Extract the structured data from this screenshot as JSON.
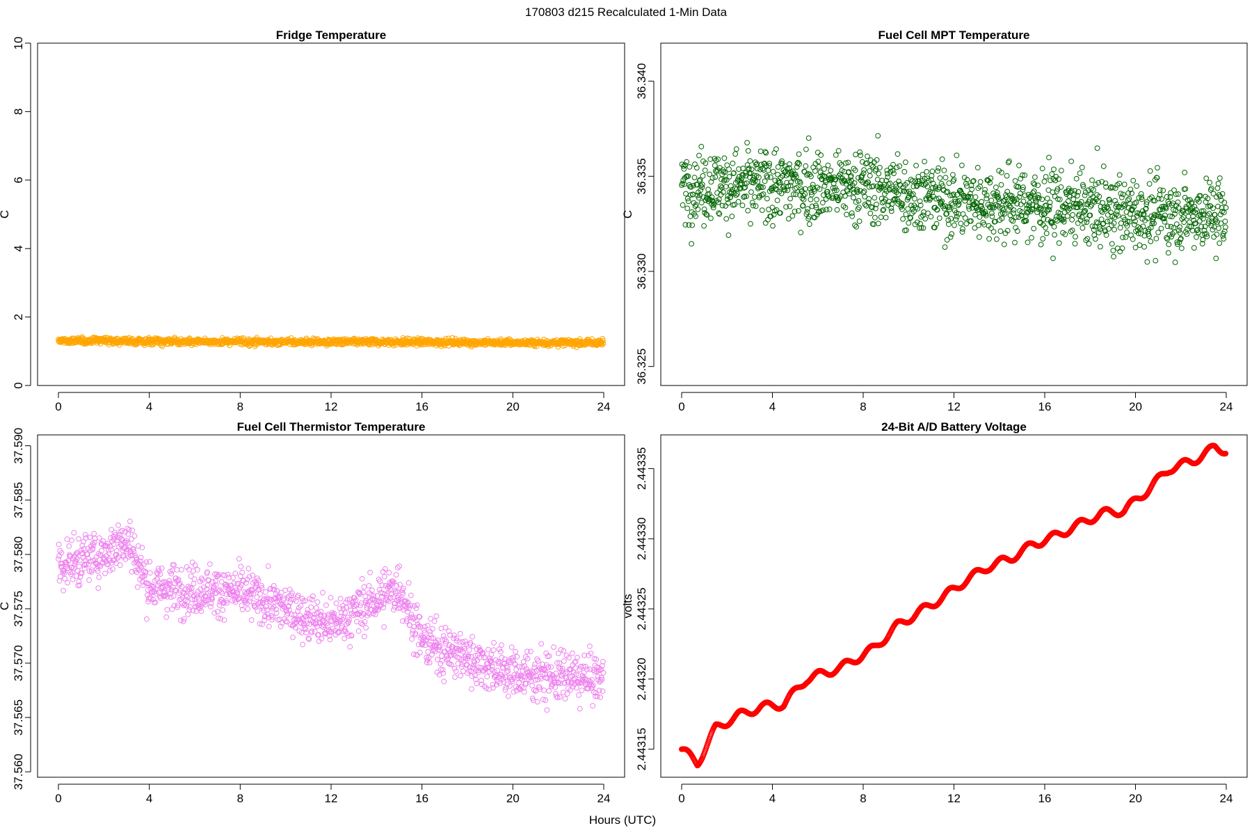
{
  "figure": {
    "suptitle": "170803   d215   Recalculated 1-Min Data",
    "xlabel": "Hours (UTC)"
  },
  "chart_data": [
    {
      "type": "scatter",
      "title": "Fridge Temperature",
      "ylabel": "C",
      "xlim": [
        0,
        24
      ],
      "ylim": [
        0,
        10
      ],
      "xticks": [
        "0",
        "4",
        "8",
        "12",
        "16",
        "20",
        "24"
      ],
      "yticks": [
        "0",
        "2",
        "4",
        "6",
        "8",
        "10"
      ],
      "color": "#FFA500",
      "series": [
        {
          "x": [
            0,
            2,
            4,
            8,
            12,
            16,
            20,
            24
          ],
          "values": [
            1.3,
            1.32,
            1.28,
            1.28,
            1.27,
            1.27,
            1.25,
            1.25
          ]
        }
      ],
      "spread": 0.15,
      "grid": false
    },
    {
      "type": "scatter",
      "title": "Fuel Cell MPT Temperature",
      "ylabel": "C",
      "xlim": [
        0,
        24
      ],
      "ylim": [
        36.324,
        36.342
      ],
      "xticks": [
        "0",
        "4",
        "8",
        "12",
        "16",
        "20",
        "24"
      ],
      "yticks": [
        "36.325",
        "36.330",
        "36.335",
        "36.340"
      ],
      "color": "#006400",
      "series": [
        {
          "x": [
            0,
            4,
            8,
            12,
            16,
            20,
            24
          ],
          "values": [
            36.3345,
            36.3345,
            36.3345,
            36.3337,
            36.3335,
            36.333,
            36.333
          ]
        }
      ],
      "spread": 0.003,
      "grid": false
    },
    {
      "type": "scatter",
      "title": "Fuel Cell Thermistor Temperature",
      "ylabel": "C",
      "xlim": [
        0,
        24
      ],
      "ylim": [
        37.5595,
        37.591
      ],
      "xticks": [
        "0",
        "4",
        "8",
        "12",
        "16",
        "20",
        "24"
      ],
      "yticks": [
        "37.560",
        "37.565",
        "37.570",
        "37.575",
        "37.580",
        "37.585",
        "37.590"
      ],
      "color": "#EE82EE",
      "series": [
        {
          "x": [
            0,
            2,
            3,
            4,
            8,
            12,
            15,
            16,
            20,
            24
          ],
          "values": [
            37.579,
            37.58,
            37.5815,
            37.577,
            37.5765,
            37.5735,
            37.577,
            37.572,
            37.569,
            37.5685
          ]
        }
      ],
      "spread": 0.0035,
      "grid": false
    },
    {
      "type": "line",
      "title": "24-Bit A/D Battery Voltage",
      "ylabel": "volts",
      "xlim": [
        0,
        24
      ],
      "ylim": [
        2.44313,
        2.443374
      ],
      "xticks": [
        "0",
        "4",
        "8",
        "12",
        "16",
        "20",
        "24"
      ],
      "yticks": [
        "2.44315",
        "2.44320",
        "2.44325",
        "2.44330",
        "2.44335"
      ],
      "color": "#FF0000",
      "series": [
        {
          "x": [
            0,
            0.7,
            1.5,
            2.5,
            3.5,
            4.5,
            5.5,
            7,
            8.5,
            9.5,
            10.5,
            11.5,
            12.5,
            13.5,
            14.5,
            15.5,
            16.5,
            17.5,
            18.5,
            19.5,
            20.5,
            21.5,
            22.5,
            23.5,
            24
          ],
          "values": [
            2.44315,
            2.44314,
            2.443165,
            2.443174,
            2.44318,
            2.443182,
            2.4432,
            2.443208,
            2.443222,
            2.443238,
            2.443248,
            2.443258,
            2.44327,
            2.44328,
            2.443286,
            2.443296,
            2.443302,
            2.44331,
            2.443318,
            2.44332,
            2.443334,
            2.44335,
            2.443355,
            2.443365,
            2.443363
          ]
        }
      ],
      "grid": false
    }
  ]
}
